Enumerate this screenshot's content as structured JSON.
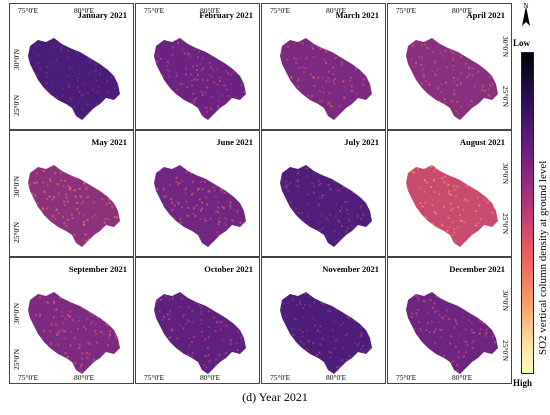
{
  "figure": {
    "caption": "(d) Year 2021",
    "legend": {
      "title": "SO2 vertical column density at ground level",
      "low_label": "Low",
      "high_label": "High",
      "colormap": "magma",
      "colors": [
        "#000004",
        "#2c105c",
        "#711f81",
        "#b63679",
        "#ee605e",
        "#fb9b67",
        "#fde6a8",
        "#fcfdbf"
      ]
    },
    "north_arrow": {
      "label": "N"
    },
    "axis_labels": {
      "lon_left": "75°0'E",
      "lon_right": "80°0'E",
      "lat_top": "30°0'N",
      "lat_bottom": "25°0'N"
    },
    "panels": [
      {
        "title": "January 2021",
        "base_color": "#4a1d78",
        "speckle": "#8a2e82"
      },
      {
        "title": "February 2021",
        "base_color": "#6a2380",
        "speckle": "#c24a78"
      },
      {
        "title": "March 2021",
        "base_color": "#7a2a7f",
        "speckle": "#d2566f"
      },
      {
        "title": "April 2021",
        "base_color": "#86307e",
        "speckle": "#d65e6a"
      },
      {
        "title": "May 2021",
        "base_color": "#8c327c",
        "speckle": "#e16b66"
      },
      {
        "title": "June 2021",
        "base_color": "#6e2681",
        "speckle": "#d4566c"
      },
      {
        "title": "July 2021",
        "base_color": "#4f1f7a",
        "speckle": "#a23b7f"
      },
      {
        "title": "August 2021",
        "base_color": "#c94a6f",
        "speckle": "#f4935f"
      },
      {
        "title": "September 2021",
        "base_color": "#7c2b80",
        "speckle": "#d9586c"
      },
      {
        "title": "October 2021",
        "base_color": "#5e227e",
        "speckle": "#c14876"
      },
      {
        "title": "November 2021",
        "base_color": "#4c1e79",
        "speckle": "#a33c7e"
      },
      {
        "title": "December 2021",
        "base_color": "#6b2581",
        "speckle": "#c94c73"
      }
    ]
  }
}
